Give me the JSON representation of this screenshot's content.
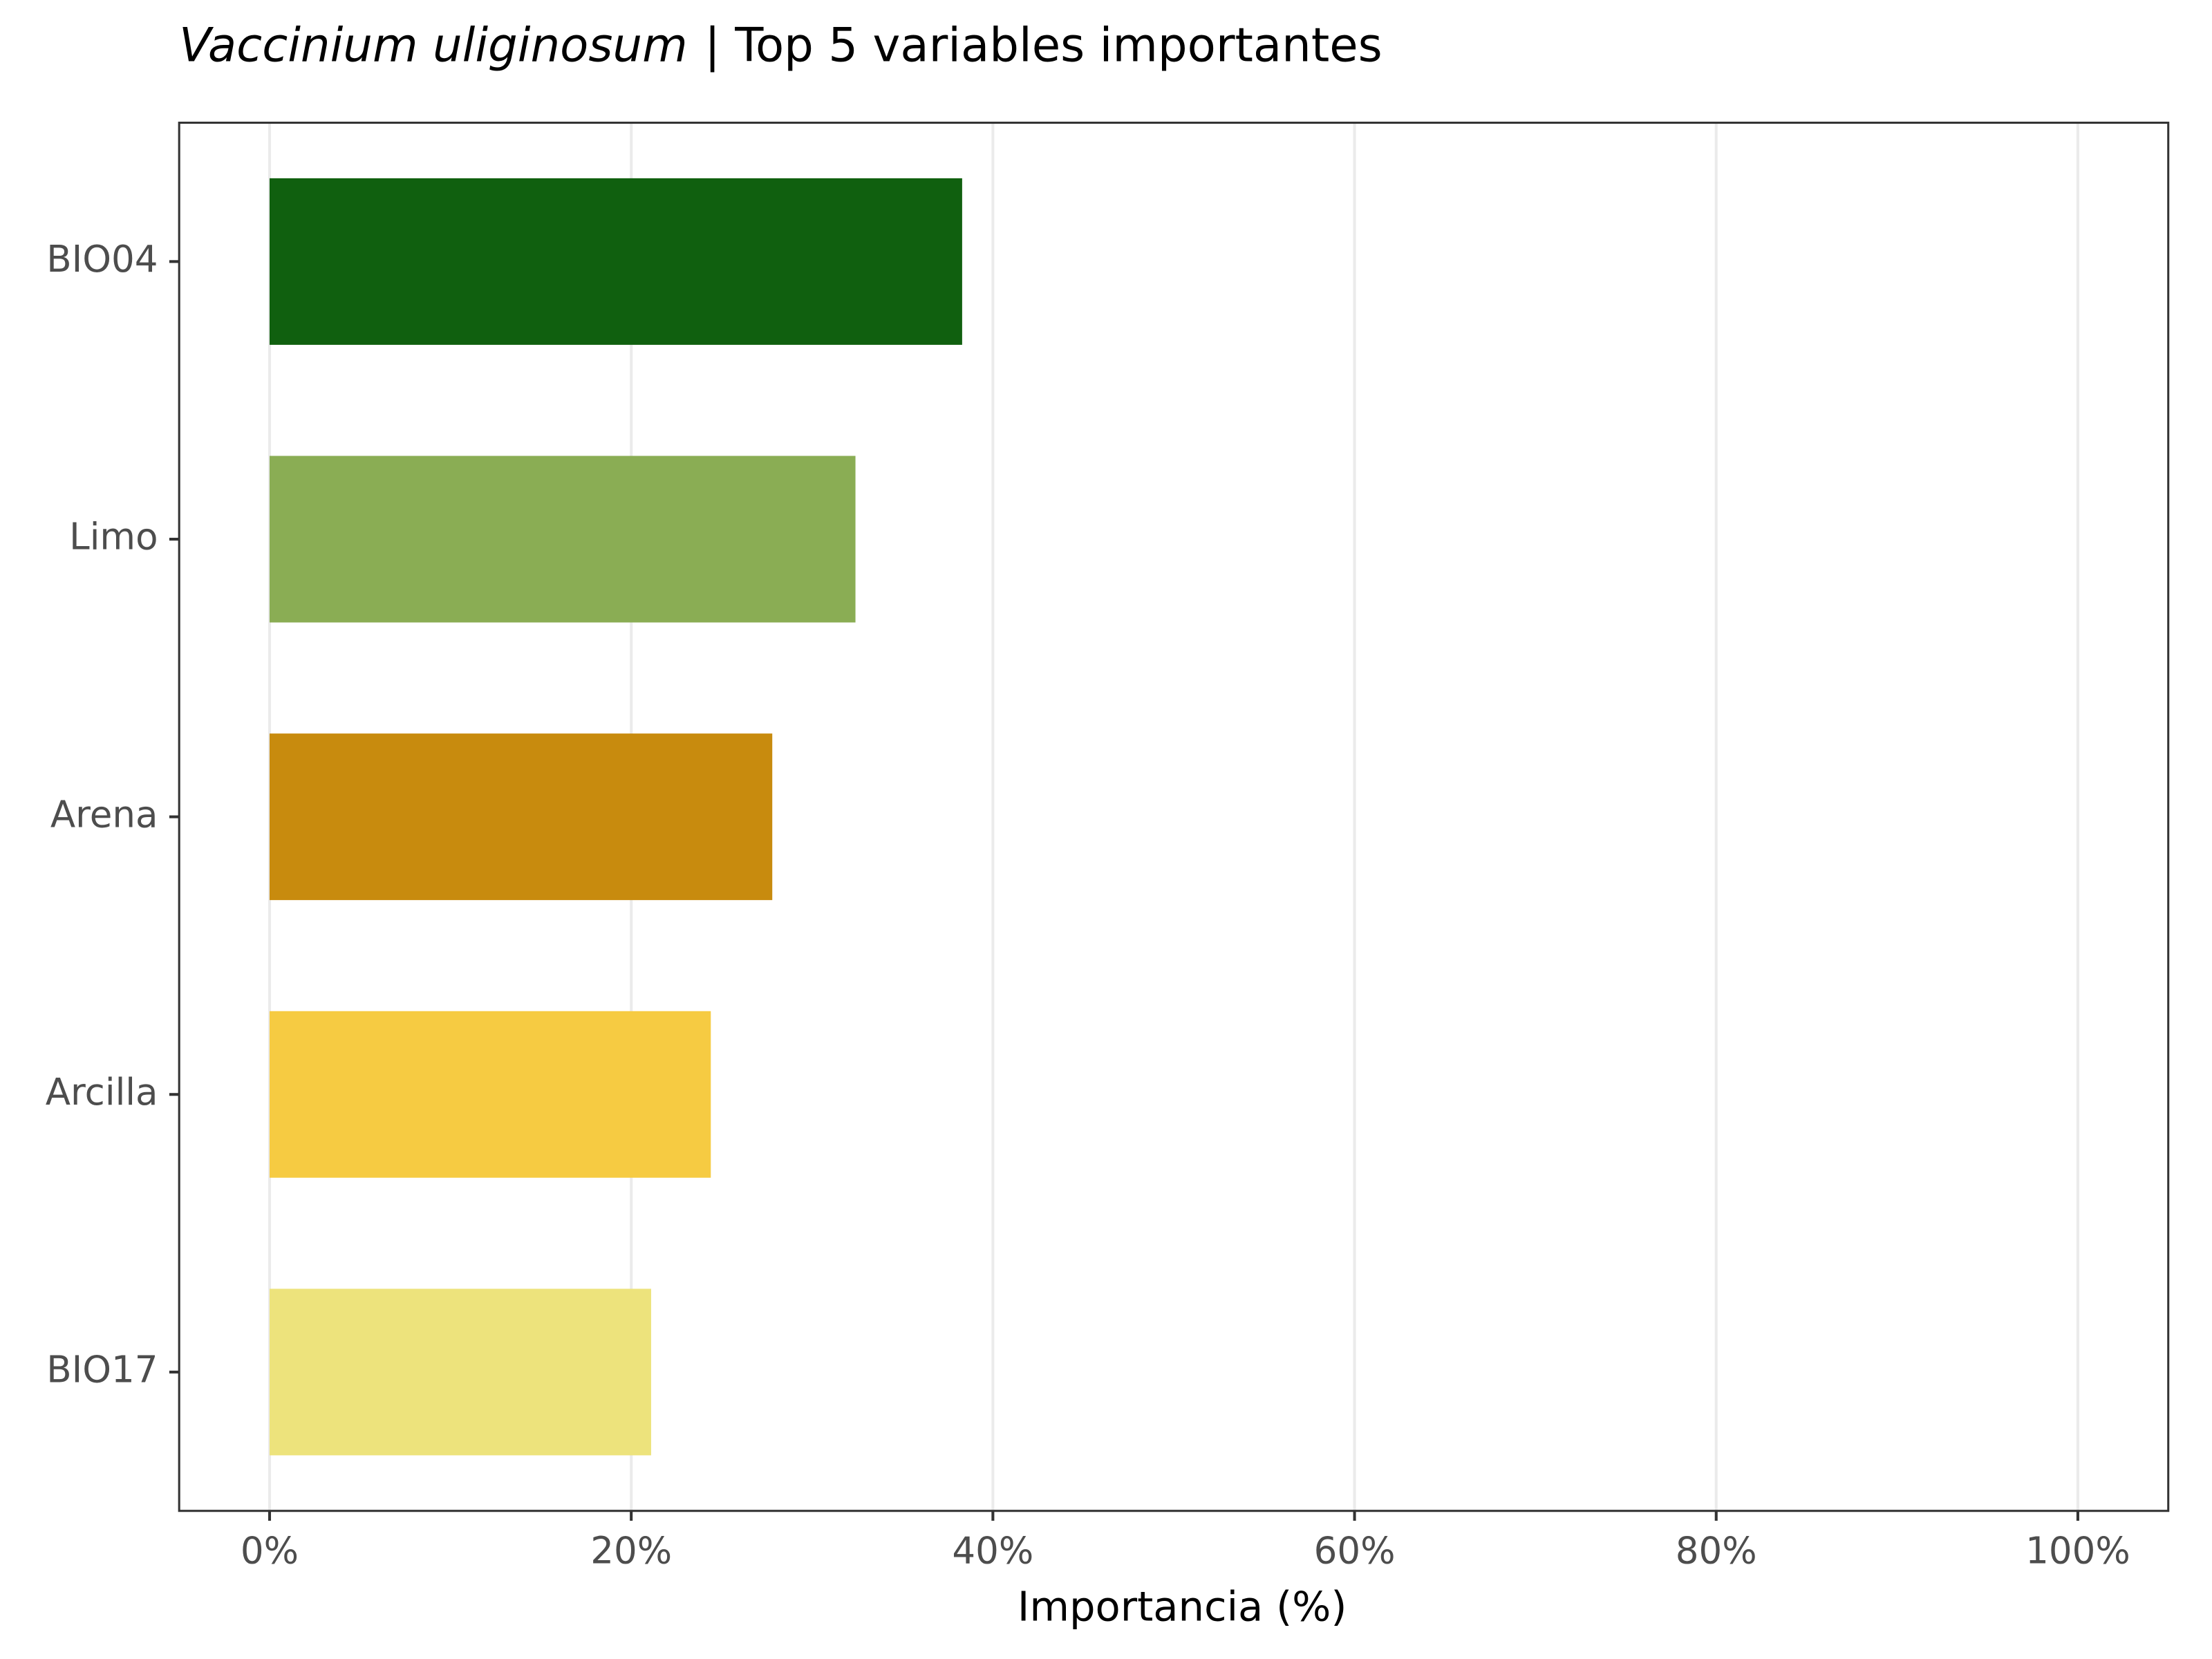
{
  "chart_data": {
    "type": "bar",
    "orientation": "horizontal",
    "title_species": "Vaccinium uliginosum",
    "title": "| Top 5 variables importantes",
    "x_label": "Importancia (%)",
    "categories": [
      "BIO04",
      "Limo",
      "Arena",
      "Arcilla",
      "BIO17"
    ],
    "values": [
      38.3,
      32.4,
      27.8,
      24.4,
      21.1
    ],
    "colors": [
      "#10600f",
      "#8aad54",
      "#c88b0e",
      "#f6cb42",
      "#ede37c"
    ],
    "xlim": [
      -5,
      105
    ],
    "xticks": [
      {
        "value": 0,
        "label": "0%"
      },
      {
        "value": 20,
        "label": "20%"
      },
      {
        "value": 40,
        "label": "40%"
      },
      {
        "value": 60,
        "label": "60%"
      },
      {
        "value": 80,
        "label": "80%"
      },
      {
        "value": 100,
        "label": "100%"
      }
    ],
    "grid": true
  }
}
